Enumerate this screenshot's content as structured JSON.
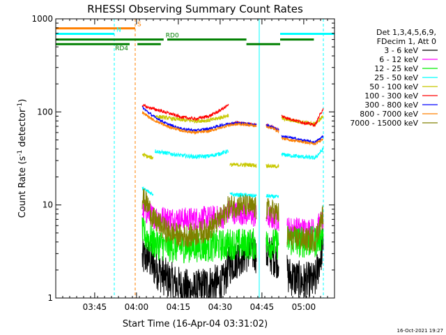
{
  "chart_data": {
    "type": "line",
    "title": "RHESSI Observing Summary Count Rates",
    "xlabel": "Start Time (16-Apr-04 03:31:02)",
    "ylabel": "Count Rate (s",
    "ylabel_sup1": "-1",
    "ylabel_mid": " detector",
    "ylabel_sup2": "-1",
    "ylabel_end": ")",
    "yscale": "log",
    "xlim_minutes": [
      0,
      100
    ],
    "ylim": [
      1,
      1000
    ],
    "x_ticks": [
      {
        "label": "03:45",
        "minute": 13.97
      },
      {
        "label": "04:00",
        "minute": 28.97
      },
      {
        "label": "04:15",
        "minute": 43.97
      },
      {
        "label": "04:30",
        "minute": 58.97
      },
      {
        "label": "04:45",
        "minute": 73.97
      },
      {
        "label": "05:00",
        "minute": 88.97
      }
    ],
    "y_ticks": [
      {
        "label": "1",
        "value": 1
      },
      {
        "label": "10",
        "value": 10
      },
      {
        "label": "100",
        "value": 100
      },
      {
        "label": "1000",
        "value": 1000
      }
    ],
    "legend_header": [
      "Det 1,3,4,5,6,9,",
      "FDecim 1, Att 0"
    ],
    "legend_position": "right",
    "series": [
      {
        "name": "3 - 6 keV",
        "color": "#000000",
        "noise": 0.5,
        "segments": [
          [
            [
              31,
              2.6
            ],
            [
              33,
              2.8
            ],
            [
              35,
              2.2
            ],
            [
              40,
              1.6
            ],
            [
              45,
              1.3
            ],
            [
              50,
              1.2
            ],
            [
              55,
              1.4
            ],
            [
              60,
              1.4
            ],
            [
              62,
              2.2
            ],
            [
              66,
              2.8
            ],
            [
              70,
              3.2
            ],
            [
              72,
              3.0
            ]
          ],
          [
            [
              75.5,
              3.0
            ],
            [
              78,
              2.8
            ],
            [
              80,
              2.6
            ]
          ],
          [
            [
              83,
              1.8
            ],
            [
              88,
              1.5
            ],
            [
              93,
              1.5
            ],
            [
              96,
              4.0
            ]
          ]
        ]
      },
      {
        "name": "6 - 12 keV",
        "color": "#ff00ff",
        "noise": 0.3,
        "segments": [
          [
            [
              31,
              8.5
            ],
            [
              33,
              8.2
            ],
            [
              35,
              7.5
            ],
            [
              40,
              7.2
            ],
            [
              45,
              7.0
            ],
            [
              50,
              7.1
            ],
            [
              55,
              7.3
            ],
            [
              60,
              7.4
            ],
            [
              62,
              8.5
            ],
            [
              66,
              8.2
            ],
            [
              70,
              7.8
            ],
            [
              72,
              7.5
            ]
          ],
          [
            [
              75.5,
              7.5
            ],
            [
              78,
              7.2
            ],
            [
              80,
              7.0
            ]
          ],
          [
            [
              83,
              5.6
            ],
            [
              88,
              5.5
            ],
            [
              93,
              5.4
            ],
            [
              96,
              7.0
            ]
          ]
        ]
      },
      {
        "name": "12 - 25 keV",
        "color": "#00ee00",
        "noise": 0.4,
        "segments": [
          [
            [
              31,
              5.0
            ],
            [
              33,
              4.5
            ],
            [
              35,
              3.9
            ],
            [
              40,
              3.6
            ],
            [
              45,
              3.5
            ],
            [
              50,
              3.6
            ],
            [
              55,
              3.6
            ],
            [
              60,
              3.7
            ],
            [
              62,
              3.8
            ],
            [
              66,
              3.8
            ],
            [
              70,
              3.8
            ],
            [
              72,
              3.8
            ]
          ],
          [
            [
              75.5,
              3.8
            ],
            [
              78,
              3.8
            ],
            [
              80,
              3.8
            ]
          ],
          [
            [
              83,
              4.2
            ],
            [
              88,
              4.0
            ],
            [
              93,
              4.0
            ],
            [
              96,
              5.0
            ]
          ]
        ]
      },
      {
        "name": "25 - 50 keV",
        "color": "#00ffff",
        "noise": 0.05,
        "segments": [
          [
            [
              31,
              15
            ],
            [
              33,
              14
            ],
            [
              35,
              13
            ]
          ],
          [
            [
              35.5,
              38
            ],
            [
              40,
              36
            ],
            [
              45,
              34
            ],
            [
              50,
              33
            ],
            [
              55,
              33.5
            ],
            [
              58,
              35
            ],
            [
              62,
              38
            ]
          ],
          [
            [
              62.5,
              13
            ],
            [
              66,
              12.8
            ],
            [
              70,
              12.6
            ],
            [
              72,
              12.5
            ]
          ],
          [
            [
              75.5,
              12.5
            ],
            [
              78,
              12.3
            ],
            [
              80,
              12.1
            ]
          ],
          [
            [
              81,
              35
            ],
            [
              84,
              34
            ],
            [
              88,
              33
            ],
            [
              93,
              32
            ],
            [
              96,
              40
            ]
          ]
        ]
      },
      {
        "name": "50 - 100 keV",
        "color": "#c8c800",
        "noise": 0.05,
        "segments": [
          [
            [
              31,
              35
            ],
            [
              33,
              33
            ],
            [
              35,
              32
            ]
          ],
          [
            [
              35.5,
              90
            ],
            [
              40,
              86
            ],
            [
              45,
              82
            ],
            [
              50,
              80
            ],
            [
              55,
              81
            ],
            [
              58,
              85
            ],
            [
              62,
              92
            ]
          ],
          [
            [
              62.5,
              27
            ],
            [
              66,
              27
            ],
            [
              70,
              27
            ],
            [
              72,
              26.5
            ]
          ],
          [
            [
              75.5,
              26.5
            ],
            [
              78,
              26
            ],
            [
              80,
              26
            ]
          ],
          [
            [
              81,
              85
            ],
            [
              84,
              82
            ],
            [
              88,
              78
            ],
            [
              93,
              74
            ],
            [
              96,
              90
            ]
          ]
        ]
      },
      {
        "name": "100 - 300 keV",
        "color": "#ff0000",
        "noise": 0.04,
        "segments": [
          [
            [
              31,
              118
            ],
            [
              33,
              112
            ],
            [
              35,
              108
            ],
            [
              40,
              98
            ],
            [
              45,
              88
            ],
            [
              50,
              84
            ],
            [
              55,
              90
            ],
            [
              58,
              100
            ],
            [
              62,
              118
            ]
          ],
          [
            [
              62.5,
              75
            ],
            [
              66,
              76
            ],
            [
              70,
              74
            ],
            [
              72,
              72
            ]
          ],
          [
            [
              75.5,
              72
            ],
            [
              78,
              68
            ],
            [
              80,
              64
            ]
          ],
          [
            [
              81,
              90
            ],
            [
              84,
              84
            ],
            [
              88,
              78
            ],
            [
              93,
              72
            ],
            [
              96,
              110
            ]
          ]
        ]
      },
      {
        "name": "300 - 800 keV",
        "color": "#0000ff",
        "noise": 0.035,
        "segments": [
          [
            [
              31,
              112
            ],
            [
              33,
              100
            ],
            [
              35,
              90
            ],
            [
              40,
              74
            ],
            [
              45,
              66
            ],
            [
              50,
              63
            ],
            [
              55,
              66
            ],
            [
              58,
              70
            ],
            [
              62,
              75
            ],
            [
              66,
              76
            ],
            [
              70,
              74
            ],
            [
              72,
              72
            ]
          ],
          [
            [
              75.5,
              72
            ],
            [
              78,
              68
            ],
            [
              80,
              64
            ]
          ],
          [
            [
              81,
              55
            ],
            [
              84,
              53
            ],
            [
              88,
              50
            ],
            [
              93,
              47
            ],
            [
              96,
              55
            ]
          ]
        ]
      },
      {
        "name": "800 - 7000 keV",
        "color": "#ff8000",
        "noise": 0.035,
        "segments": [
          [
            [
              31,
              100
            ],
            [
              33,
              90
            ],
            [
              35,
              82
            ],
            [
              40,
              70
            ],
            [
              45,
              63
            ],
            [
              50,
              60
            ],
            [
              55,
              62
            ],
            [
              58,
              66
            ],
            [
              62,
              72
            ],
            [
              66,
              74
            ],
            [
              70,
              72
            ],
            [
              72,
              70
            ]
          ],
          [
            [
              75.5,
              70
            ],
            [
              78,
              66
            ],
            [
              80,
              62
            ]
          ],
          [
            [
              81,
              52
            ],
            [
              84,
              50
            ],
            [
              88,
              48
            ],
            [
              93,
              45
            ],
            [
              96,
              52
            ]
          ]
        ]
      },
      {
        "name": "7000 - 15000 keV",
        "color": "#808000",
        "noise": 0.3,
        "segments": [
          [
            [
              31,
              12
            ],
            [
              33,
              10
            ],
            [
              35,
              7
            ],
            [
              40,
              5.2
            ],
            [
              45,
              4.6
            ],
            [
              50,
              4.8
            ],
            [
              55,
              5.5
            ],
            [
              60,
              7.5
            ],
            [
              62,
              9.5
            ],
            [
              66,
              10
            ],
            [
              70,
              9.5
            ],
            [
              72,
              9.0
            ]
          ],
          [
            [
              75.5,
              9.0
            ],
            [
              78,
              8.5
            ],
            [
              80,
              8.0
            ]
          ],
          [
            [
              83,
              4.5
            ],
            [
              88,
              4.3
            ],
            [
              93,
              4.2
            ],
            [
              96,
              8.0
            ]
          ]
        ]
      }
    ],
    "flags": [
      {
        "label": "S",
        "color": "#ff8000",
        "segments": [
          [
            0,
            28.5
          ]
        ],
        "value": 790
      },
      {
        "label": "N",
        "color": "#00ffff",
        "segments": [
          [
            0,
            21
          ],
          [
            80.5,
            100
          ]
        ],
        "value": 690
      },
      {
        "label": "RD0",
        "color": "#008000",
        "segments": [
          [
            0,
            38.7
          ],
          [
            40,
            68.4
          ],
          [
            80.5,
            92.6
          ]
        ],
        "value": 600
      },
      {
        "label": "RD4",
        "color": "#008000",
        "segments": [
          [
            0,
            26.5
          ],
          [
            29.3,
            37.7
          ],
          [
            68.4,
            80.5
          ]
        ],
        "value": 535
      }
    ],
    "vlines": [
      {
        "minute": 21,
        "color": "#00ffff",
        "style": "dashed"
      },
      {
        "minute": 28.5,
        "color": "#ff8000",
        "style": "dashed"
      },
      {
        "minute": 73,
        "color": "#00ffff",
        "style": "solid"
      },
      {
        "minute": 96,
        "color": "#00ffff",
        "style": "dashed"
      }
    ],
    "timestamp": "16-Oct-2021 19:27"
  }
}
